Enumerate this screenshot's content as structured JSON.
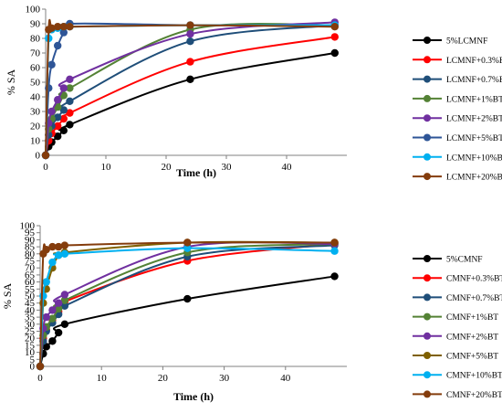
{
  "chart_data": [
    {
      "type": "line",
      "title": "",
      "xlabel": "Time (h)",
      "ylabel": "% SA",
      "xlim": [
        0,
        50
      ],
      "ylim": [
        0,
        100
      ],
      "xticks": [
        0,
        10,
        20,
        30,
        40
      ],
      "yticks": [
        0,
        10,
        20,
        30,
        40,
        50,
        60,
        70,
        80,
        90,
        100
      ],
      "grid": false,
      "legend_position": "right",
      "series": [
        {
          "name": "5%LCMNF",
          "color": "#000000",
          "x": [
            0,
            0.5,
            1,
            2,
            3,
            4,
            24,
            48
          ],
          "y": [
            0,
            6,
            9,
            13,
            17,
            21,
            52,
            70
          ]
        },
        {
          "name": "LCMNF+0.3%BT",
          "color": "#ff0000",
          "x": [
            0,
            0.5,
            1,
            2,
            3,
            4,
            24,
            48
          ],
          "y": [
            0,
            10,
            15,
            20,
            25,
            29,
            64,
            81
          ]
        },
        {
          "name": "LCMNF+0.7%BT",
          "color": "#1f4e79",
          "x": [
            0,
            0.5,
            1,
            2,
            3,
            4,
            24,
            48
          ],
          "y": [
            0,
            14,
            20,
            26,
            31,
            37,
            78,
            89
          ]
        },
        {
          "name": "LCMNF+1%BT",
          "color": "#548235",
          "x": [
            0,
            0.5,
            1,
            2,
            3,
            4,
            24,
            48
          ],
          "y": [
            0,
            18,
            25,
            33,
            41,
            46,
            86,
            89
          ]
        },
        {
          "name": "LCMNF+2%BT",
          "color": "#7030a0",
          "x": [
            0,
            0.5,
            1,
            2,
            3,
            4,
            24,
            48
          ],
          "y": [
            0,
            22,
            30,
            38,
            46,
            52,
            83,
            91
          ]
        },
        {
          "name": "LCMNF+5%BT",
          "color": "#2e5597",
          "x": [
            0,
            0.5,
            1,
            2,
            3,
            4,
            24,
            48
          ],
          "y": [
            0,
            46,
            62,
            75,
            84,
            90,
            89,
            89
          ]
        },
        {
          "name": "LCMNF+10%BT",
          "color": "#00b0f0",
          "x": [
            0,
            0.5,
            1,
            2,
            3,
            4,
            24,
            48
          ],
          "y": [
            0,
            80,
            86,
            87,
            88,
            88,
            89,
            89
          ]
        },
        {
          "name": "LCMNF+20%BT",
          "color": "#843c0c",
          "x": [
            0,
            0.5,
            1,
            2,
            3,
            4,
            24,
            48
          ],
          "y": [
            0,
            86,
            87,
            88,
            88,
            88,
            89,
            88
          ]
        }
      ]
    },
    {
      "type": "line",
      "title": "",
      "xlabel": "Time (h)",
      "ylabel": "% SA",
      "xlim": [
        0,
        50
      ],
      "ylim": [
        0,
        100
      ],
      "xticks": [
        0,
        10,
        20,
        30,
        40
      ],
      "yticks": [
        0,
        5,
        10,
        15,
        20,
        25,
        30,
        35,
        40,
        45,
        50,
        55,
        60,
        65,
        70,
        75,
        80,
        85,
        90,
        95,
        100
      ],
      "grid": false,
      "legend_position": "right",
      "series": [
        {
          "name": "5%CMNF",
          "color": "#000000",
          "x": [
            0,
            0.5,
            1,
            2,
            3,
            4,
            24,
            48
          ],
          "y": [
            0,
            9,
            14,
            18,
            24,
            30,
            48,
            64
          ]
        },
        {
          "name": "CMNF+0.3%BT",
          "color": "#ff0000",
          "x": [
            0,
            0.5,
            1,
            2,
            3,
            4,
            24,
            48
          ],
          "y": [
            0,
            20,
            26,
            33,
            39,
            46,
            75,
            87
          ]
        },
        {
          "name": "CMNF+0.7%BT",
          "color": "#1f4e79",
          "x": [
            0,
            0.5,
            1,
            2,
            3,
            4,
            24,
            48
          ],
          "y": [
            0,
            18,
            25,
            31,
            37,
            43,
            78,
            86
          ]
        },
        {
          "name": "CMNF+1%BT",
          "color": "#548235",
          "x": [
            0,
            0.5,
            1,
            2,
            3,
            4,
            24,
            48
          ],
          "y": [
            0,
            22,
            28,
            34,
            41,
            47,
            81,
            87
          ]
        },
        {
          "name": "CMNF+2%BT",
          "color": "#7030a0",
          "x": [
            0,
            0.5,
            1,
            2,
            3,
            4,
            24,
            48
          ],
          "y": [
            0,
            27,
            35,
            40,
            45,
            51,
            85,
            87
          ]
        },
        {
          "name": "CMNF+5%BT",
          "color": "#7f6000",
          "x": [
            0,
            0.5,
            1,
            2,
            3,
            4,
            24,
            48
          ],
          "y": [
            0,
            45,
            55,
            70,
            79,
            81,
            88,
            88
          ]
        },
        {
          "name": "CMNF+10%BT",
          "color": "#00b0f0",
          "x": [
            0,
            0.5,
            1,
            2,
            3,
            4,
            24,
            48
          ],
          "y": [
            0,
            50,
            60,
            74,
            79,
            80,
            84,
            82
          ]
        },
        {
          "name": "CMNF+20%BT",
          "color": "#843c0c",
          "x": [
            0,
            0.5,
            1,
            2,
            3,
            4,
            24,
            48
          ],
          "y": [
            0,
            80,
            83,
            85,
            85,
            86,
            88,
            88
          ]
        }
      ]
    }
  ]
}
